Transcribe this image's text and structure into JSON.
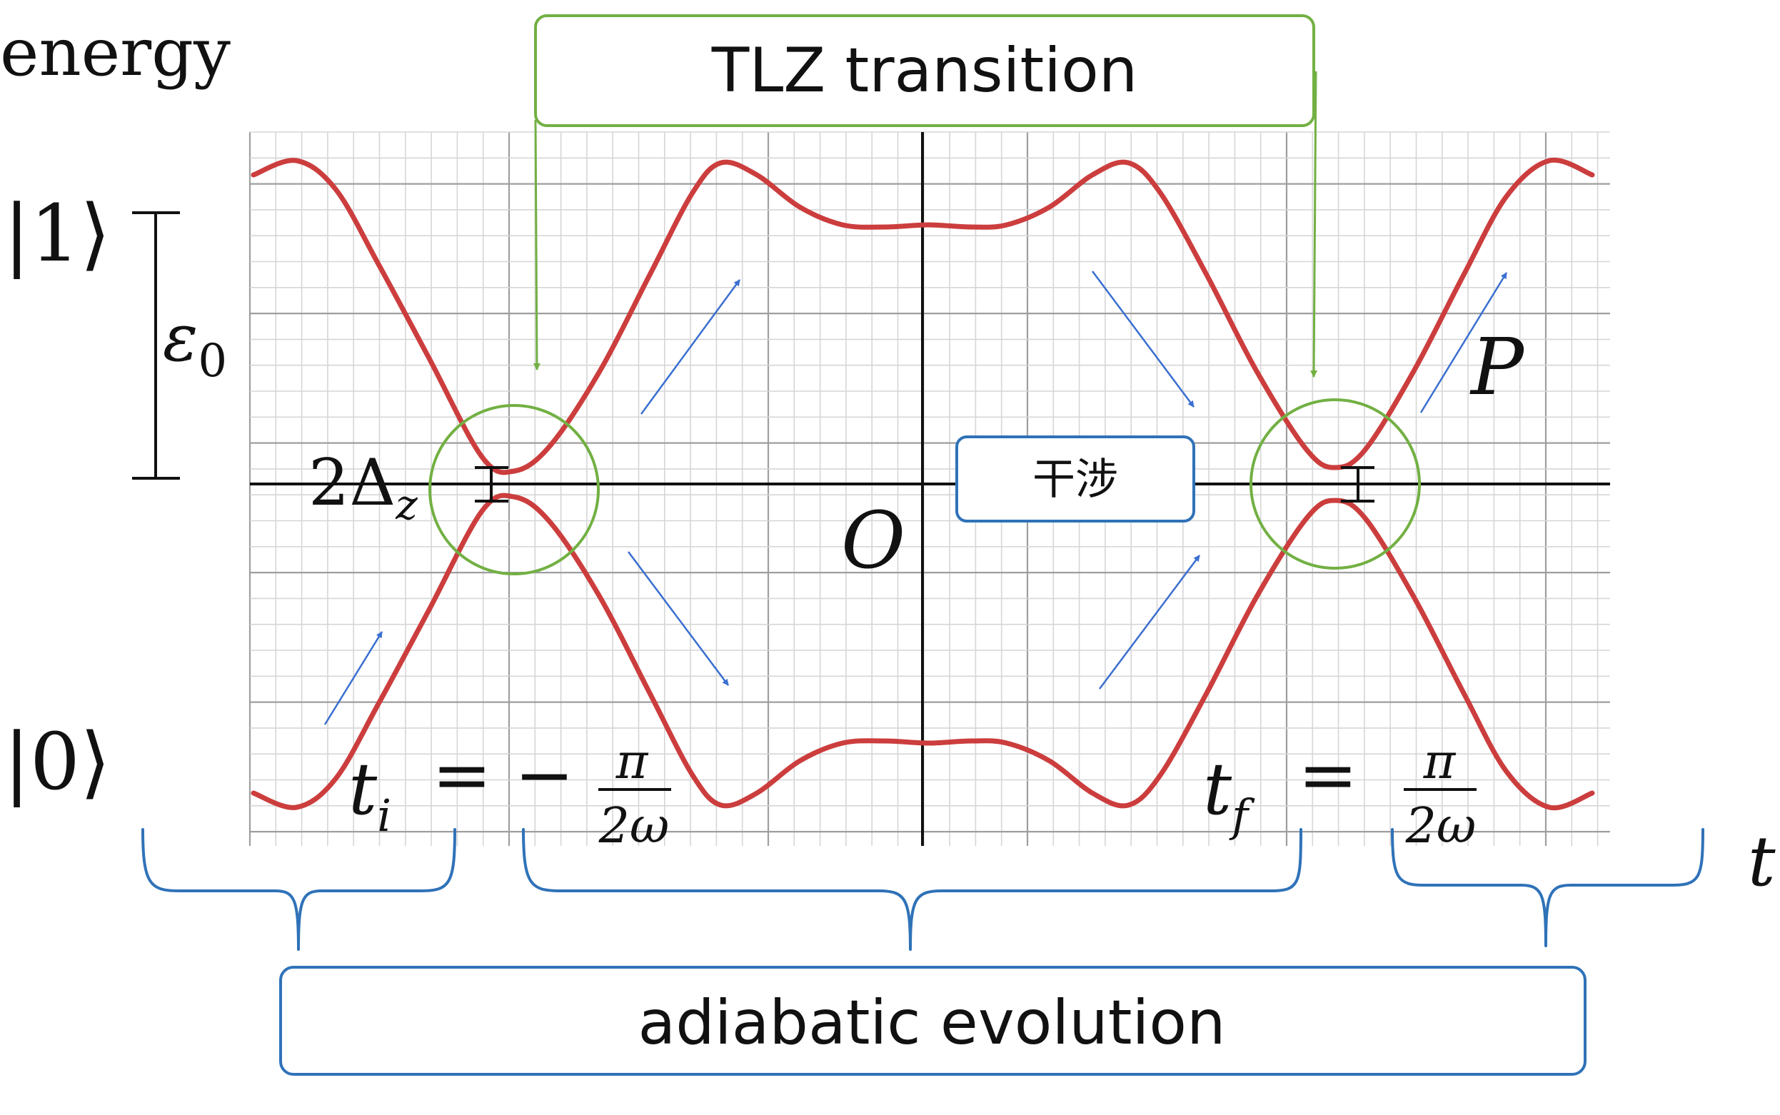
{
  "diagram": {
    "energy_label": "energy",
    "time_label": "t",
    "state_upper": "|1⟩",
    "state_lower": "|0⟩",
    "epsilon_label": "ε",
    "epsilon_sub": "0",
    "delta_label": "2Δ",
    "delta_sub": "z",
    "origin_label": "O",
    "p_label": "P",
    "ti_lhs": "t",
    "ti_sub": "i",
    "ti_eq": "= −",
    "tf_lhs": "t",
    "tf_sub": "f",
    "tf_eq": "=",
    "frac_num": "π",
    "frac_den": "2ω",
    "tlz_box": "TLZ transition",
    "interference_box": "干涉",
    "adiabatic_box": "adiabatic evolution",
    "colors": {
      "curve": "#cc3d3d",
      "green": "#72b043",
      "blue": "#2f72b8",
      "arrow": "#3a6fd0",
      "grid_minor": "#d6d6d6",
      "grid_major": "#9e9e9e",
      "axis": "#111111"
    }
  }
}
